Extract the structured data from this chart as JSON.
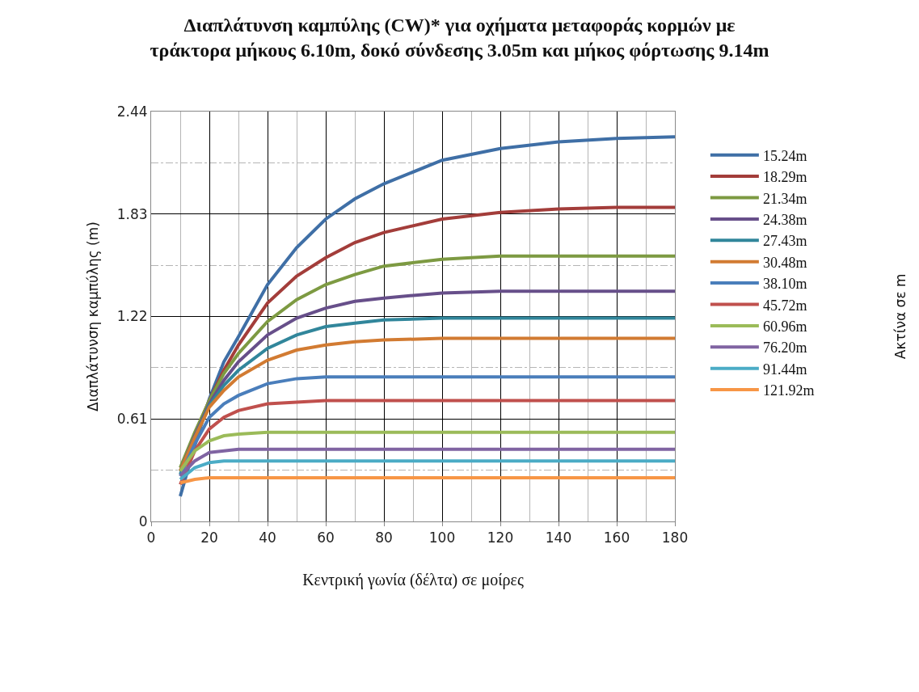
{
  "chart_data": {
    "type": "line",
    "title": "Διαπλάτυνση καμπύλης (CW)* για οχήματα μεταφοράς κορμών με\nτράκτορα μήκους 6.10m, δοκό σύνδεσης 3.05m και μήκος φόρτωσης 9.14m",
    "xlabel": "Κεντρική γωνία (δέλτα) σε μοίρες",
    "ylabel": "Διαπλάτυνση καμπύλης (m)",
    "legend_title": "Ακτίνα σε m",
    "x": [
      10,
      15,
      20,
      25,
      30,
      40,
      50,
      60,
      70,
      80,
      100,
      120,
      140,
      160,
      180
    ],
    "xlim": [
      0,
      180
    ],
    "xticks": [
      0,
      20,
      40,
      60,
      80,
      100,
      120,
      140,
      160,
      180
    ],
    "ylim": [
      0,
      2.44
    ],
    "yticks": [
      0,
      0.61,
      1.22,
      1.83,
      2.44
    ],
    "grid": true,
    "legend": "right",
    "marker": "none",
    "line_style": "solid",
    "series": [
      {
        "name": "15.24m",
        "color": "#3f6fa6",
        "values": [
          0.15,
          0.45,
          0.73,
          0.95,
          1.1,
          1.41,
          1.63,
          1.8,
          1.92,
          2.01,
          2.15,
          2.22,
          2.26,
          2.28,
          2.29
        ]
      },
      {
        "name": "18.29m",
        "color": "#a33d3a",
        "values": [
          0.3,
          0.52,
          0.72,
          0.9,
          1.05,
          1.3,
          1.46,
          1.57,
          1.66,
          1.72,
          1.8,
          1.84,
          1.86,
          1.87,
          1.87
        ]
      },
      {
        "name": "21.34m",
        "color": "#7d9a42",
        "values": [
          0.32,
          0.53,
          0.72,
          0.88,
          1.0,
          1.19,
          1.32,
          1.41,
          1.47,
          1.52,
          1.56,
          1.58,
          1.58,
          1.58,
          1.58
        ]
      },
      {
        "name": "24.38m",
        "color": "#674f8a",
        "values": [
          0.3,
          0.51,
          0.7,
          0.84,
          0.95,
          1.11,
          1.21,
          1.27,
          1.31,
          1.33,
          1.36,
          1.37,
          1.37,
          1.37,
          1.37
        ]
      },
      {
        "name": "27.43m",
        "color": "#31869b",
        "values": [
          0.28,
          0.5,
          0.69,
          0.81,
          0.9,
          1.03,
          1.11,
          1.16,
          1.18,
          1.2,
          1.21,
          1.21,
          1.21,
          1.21,
          1.21
        ]
      },
      {
        "name": "30.48m",
        "color": "#d27b32",
        "values": [
          0.3,
          0.5,
          0.68,
          0.78,
          0.86,
          0.96,
          1.02,
          1.05,
          1.07,
          1.08,
          1.09,
          1.09,
          1.09,
          1.09,
          1.09
        ]
      },
      {
        "name": "38.10m",
        "color": "#4a7ebb",
        "values": [
          0.27,
          0.46,
          0.62,
          0.7,
          0.75,
          0.82,
          0.85,
          0.86,
          0.86,
          0.86,
          0.86,
          0.86,
          0.86,
          0.86,
          0.86
        ]
      },
      {
        "name": "45.72m",
        "color": "#c0504d",
        "values": [
          0.22,
          0.42,
          0.55,
          0.62,
          0.66,
          0.7,
          0.71,
          0.72,
          0.72,
          0.72,
          0.72,
          0.72,
          0.72,
          0.72,
          0.72
        ]
      },
      {
        "name": "60.96m",
        "color": "#9bbb59",
        "values": [
          0.3,
          0.42,
          0.48,
          0.51,
          0.52,
          0.53,
          0.53,
          0.53,
          0.53,
          0.53,
          0.53,
          0.53,
          0.53,
          0.53,
          0.53
        ]
      },
      {
        "name": "76.20m",
        "color": "#8064a2",
        "values": [
          0.27,
          0.36,
          0.41,
          0.42,
          0.43,
          0.43,
          0.43,
          0.43,
          0.43,
          0.43,
          0.43,
          0.43,
          0.43,
          0.43,
          0.43
        ]
      },
      {
        "name": "91.44m",
        "color": "#4bacc6",
        "values": [
          0.25,
          0.32,
          0.35,
          0.36,
          0.36,
          0.36,
          0.36,
          0.36,
          0.36,
          0.36,
          0.36,
          0.36,
          0.36,
          0.36,
          0.36
        ]
      },
      {
        "name": "121.92m",
        "color": "#f79646",
        "values": [
          0.23,
          0.25,
          0.26,
          0.26,
          0.26,
          0.26,
          0.26,
          0.26,
          0.26,
          0.26,
          0.26,
          0.26,
          0.26,
          0.26,
          0.26
        ]
      }
    ]
  }
}
